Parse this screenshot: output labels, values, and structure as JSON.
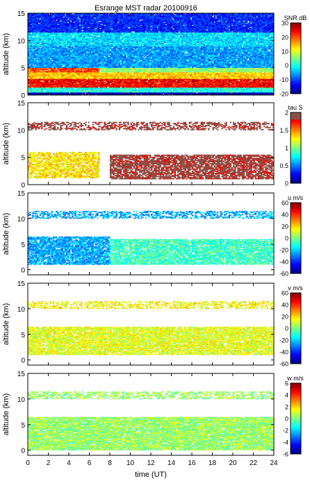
{
  "title": "Esrange MST radar 20100916",
  "xlabel": "time (UT)",
  "chart_data": [
    {
      "type": "heatmap",
      "panel": 1,
      "ylabel": "altitude (km)",
      "xlim": [
        0,
        24
      ],
      "ylim": [
        0,
        15
      ],
      "xticks": [
        0,
        2,
        4,
        6,
        8,
        10,
        12,
        14,
        16,
        18,
        20,
        22,
        24
      ],
      "yticks": [
        0,
        5,
        10,
        15
      ],
      "colorbar": {
        "label": "SNR dB",
        "range": [
          -20,
          30
        ],
        "ticks": [
          30,
          20,
          10,
          0,
          -10,
          -20
        ]
      },
      "layers": [
        {
          "alt_range": [
            0,
            0.5
          ],
          "time_range": [
            0,
            24
          ],
          "level": -18,
          "fill": 0.97
        },
        {
          "alt_range": [
            0.5,
            1.4
          ],
          "time_range": [
            0,
            24
          ],
          "level": 0,
          "fill": 0.97
        },
        {
          "alt_range": [
            1.4,
            3.0
          ],
          "time_range": [
            0,
            24
          ],
          "level": 24,
          "fill": 0.97
        },
        {
          "alt_range": [
            3.0,
            4.2
          ],
          "time_range": [
            0,
            24
          ],
          "level": 14,
          "fill": 0.97
        },
        {
          "alt_range": [
            4.2,
            5.0
          ],
          "time_range": [
            0,
            7
          ],
          "level": 20,
          "fill": 0.97
        },
        {
          "alt_range": [
            4.2,
            5.0
          ],
          "time_range": [
            7,
            24
          ],
          "level": 6,
          "fill": 0.97
        },
        {
          "alt_range": [
            5.0,
            9.0
          ],
          "time_range": [
            0,
            24
          ],
          "level": -6,
          "fill": 0.97
        },
        {
          "alt_range": [
            9.0,
            11.5
          ],
          "time_range": [
            0,
            24
          ],
          "level": -3,
          "fill": 0.97
        },
        {
          "alt_range": [
            11.5,
            15.0
          ],
          "time_range": [
            0,
            24
          ],
          "level": -12,
          "fill": 0.97
        }
      ]
    },
    {
      "type": "heatmap",
      "panel": 2,
      "ylabel": "altitude (km)",
      "xlim": [
        0,
        24
      ],
      "ylim": [
        0,
        15
      ],
      "xticks": [
        0,
        2,
        4,
        6,
        8,
        10,
        12,
        14,
        16,
        18,
        20,
        22,
        24
      ],
      "yticks": [
        0,
        5,
        10,
        15
      ],
      "colorbar": {
        "label": "tau S",
        "range": [
          0,
          2
        ],
        "ticks": [
          2,
          1.5,
          1,
          0.5,
          0
        ]
      },
      "layers": [
        {
          "alt_range": [
            1.2,
            6.0
          ],
          "time_range": [
            0,
            7
          ],
          "level": 1.3,
          "fill": 0.75
        },
        {
          "alt_range": [
            1.0,
            5.5
          ],
          "time_range": [
            8,
            24
          ],
          "level": 1.9,
          "fill": 0.8
        },
        {
          "alt_range": [
            10.0,
            11.5
          ],
          "time_range": [
            0,
            24
          ],
          "level": 1.9,
          "fill": 0.5
        }
      ]
    },
    {
      "type": "heatmap",
      "panel": 3,
      "ylabel": "altitude (km)",
      "xlim": [
        0,
        24
      ],
      "ylim": [
        -1,
        15
      ],
      "xticks": [
        0,
        2,
        4,
        6,
        8,
        10,
        12,
        14,
        16,
        18,
        20,
        22,
        24
      ],
      "yticks": [
        0,
        5,
        10,
        15
      ],
      "colorbar": {
        "label": "u m/s",
        "range": [
          -60,
          60
        ],
        "ticks": [
          60,
          40,
          20,
          0,
          -20,
          -40,
          -60
        ]
      },
      "layers": [
        {
          "alt_range": [
            1.0,
            6.5
          ],
          "time_range": [
            0,
            8
          ],
          "level": -25,
          "fill": 0.85
        },
        {
          "alt_range": [
            1.0,
            6.0
          ],
          "time_range": [
            8,
            24
          ],
          "level": -8,
          "fill": 0.85
        },
        {
          "alt_range": [
            10.0,
            11.5
          ],
          "time_range": [
            0,
            24
          ],
          "level": -25,
          "fill": 0.5
        }
      ]
    },
    {
      "type": "heatmap",
      "panel": 4,
      "ylabel": "altitude (km)",
      "xlim": [
        0,
        24
      ],
      "ylim": [
        -1,
        15
      ],
      "xticks": [
        0,
        2,
        4,
        6,
        8,
        10,
        12,
        14,
        16,
        18,
        20,
        22,
        24
      ],
      "yticks": [
        0,
        5,
        10,
        15
      ],
      "colorbar": {
        "label": "v m/s",
        "range": [
          -60,
          60
        ],
        "ticks": [
          60,
          40,
          20,
          0,
          -20,
          -40,
          -60
        ]
      },
      "layers": [
        {
          "alt_range": [
            1.0,
            6.5
          ],
          "time_range": [
            0,
            24
          ],
          "level": 12,
          "fill": 0.85
        },
        {
          "alt_range": [
            10.0,
            11.5
          ],
          "time_range": [
            0,
            24
          ],
          "level": 15,
          "fill": 0.5
        }
      ]
    },
    {
      "type": "heatmap",
      "panel": 5,
      "ylabel": "altitude (km)",
      "xlim": [
        0,
        24
      ],
      "ylim": [
        -1,
        15
      ],
      "xticks": [
        0,
        2,
        4,
        6,
        8,
        10,
        12,
        14,
        16,
        18,
        20,
        22,
        24
      ],
      "yticks": [
        0,
        5,
        10,
        15
      ],
      "colorbar": {
        "label": "w m/s",
        "range": [
          -6,
          6
        ],
        "ticks": [
          6,
          4,
          2,
          0,
          -2,
          -4,
          -6
        ]
      },
      "layers": [
        {
          "alt_range": [
            0,
            6.5
          ],
          "time_range": [
            0,
            24
          ],
          "level": 0.3,
          "fill": 0.9
        },
        {
          "alt_range": [
            10.0,
            11.5
          ],
          "time_range": [
            0,
            24
          ],
          "level": 0.3,
          "fill": 0.5
        }
      ]
    }
  ]
}
